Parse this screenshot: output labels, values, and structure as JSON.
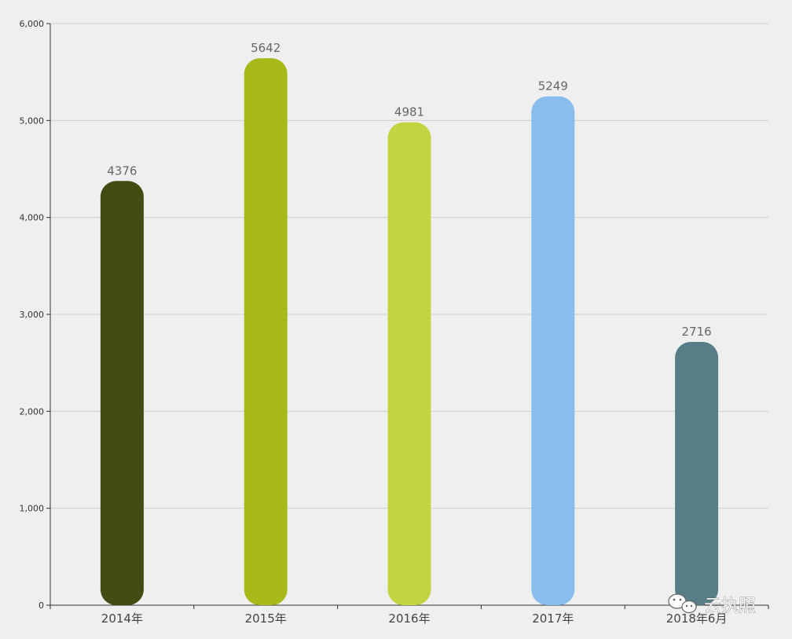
{
  "chart_data": {
    "type": "bar",
    "title": "",
    "xlabel": "",
    "ylabel": "",
    "categories": [
      "2014年",
      "2015年",
      "2016年",
      "2017年",
      "2018年6月"
    ],
    "values": [
      4376,
      5642,
      4981,
      5249,
      2716
    ],
    "data_labels": [
      "4376",
      "5642",
      "4981",
      "5249",
      "2716"
    ],
    "colors": [
      "#434c12",
      "#a8b91a",
      "#c2d541",
      "#89bdee",
      "#577e87"
    ],
    "ylim": [
      0,
      6000
    ],
    "yticks": [
      0,
      1000,
      2000,
      3000,
      4000,
      5000,
      6000
    ],
    "ytick_labels": [
      "0",
      "1,000",
      "2,000",
      "3,000",
      "4,000",
      "5,000",
      "6,000"
    ],
    "grid": true,
    "legend": "none"
  },
  "watermark": {
    "text": "云执照",
    "icon": "wechat-icon"
  }
}
